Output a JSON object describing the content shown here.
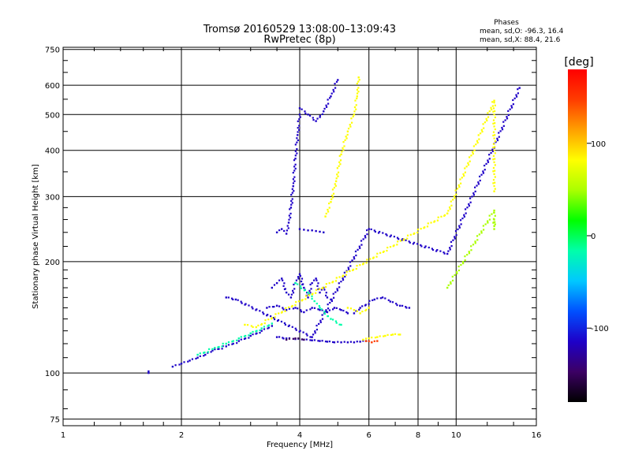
{
  "chart_data": {
    "type": "scatter",
    "title": "Tromsø 20160529 13:08:00–13:09:43",
    "subtitle": "RwPretec (8p)",
    "xlabel": "Frequency [MHz]",
    "ylabel": "Stationary phase Virtual Height [km]",
    "x_scale": "log",
    "y_scale": "log",
    "xlim": [
      1,
      16
    ],
    "ylim": [
      72,
      760
    ],
    "x_ticks": [
      1,
      2,
      4,
      6,
      8,
      10,
      16
    ],
    "y_ticks": [
      75,
      100,
      200,
      300,
      400,
      500,
      600,
      750
    ],
    "grid": true,
    "stats": {
      "heading": "Phases",
      "line_o": "mean, sd,O: -96.3, 16.4",
      "line_x": "mean, sd,X:  88.4, 21.6"
    },
    "colorbar": {
      "label": "[deg]",
      "range": [
        -180,
        180
      ],
      "ticks": [
        100,
        0,
        -100
      ],
      "colors": [
        "#000000",
        "#3c0064",
        "#1e00c8",
        "#0050ff",
        "#00c8ff",
        "#00ffaa",
        "#00ff00",
        "#aaff00",
        "#ffff00",
        "#ffa000",
        "#ff3c00",
        "#ff0000"
      ]
    },
    "series": [
      {
        "phase_deg": -100,
        "tracks": [
          {
            "x": [
              1.65,
              1.65
            ],
            "y": [
              100,
              101
            ]
          },
          {
            "x": [
              1.9,
              2.0,
              2.1,
              2.2,
              2.3,
              2.4,
              2.6,
              2.8,
              3.0,
              3.2,
              3.4
            ],
            "y": [
              104,
              106,
              108,
              110,
              112,
              115,
              118,
              122,
              126,
              130,
              134
            ]
          },
          {
            "x": [
              3.5,
              3.7,
              3.9,
              4.1,
              4.3,
              4.5,
              4.7,
              4.9,
              5.1,
              5.3,
              5.5,
              5.7,
              5.9
            ],
            "y": [
              125,
              124,
              123.5,
              123,
              122.5,
              122,
              121.5,
              121,
              121,
              121,
              121,
              121.5,
              122
            ]
          },
          {
            "x": [
              3.4,
              3.5,
              3.6,
              3.7,
              3.8,
              3.9,
              4.0,
              4.1,
              4.2,
              4.3,
              4.4,
              4.5,
              4.6,
              4.7,
              4.8
            ],
            "y": [
              170,
              175,
              180,
              165,
              160,
              175,
              185,
              170,
              160,
              175,
              180,
              165,
              170,
              160,
              158
            ]
          },
          {
            "x": [
              3.3,
              3.5,
              3.7,
              3.9,
              4.1,
              4.3,
              4.5,
              4.7,
              4.9,
              5.1,
              5.3
            ],
            "y": [
              150,
              152,
              148,
              150,
              146,
              150,
              148,
              146,
              150,
              148,
              145
            ]
          },
          {
            "x": [
              3.5,
              3.6,
              3.7,
              3.75,
              3.8,
              3.85,
              3.9,
              3.95,
              4.0
            ],
            "y": [
              240,
              245,
              238,
              255,
              280,
              320,
              380,
              440,
              500
            ]
          },
          {
            "x": [
              4.0,
              4.1,
              4.2,
              4.3,
              4.4,
              4.5,
              4.6
            ],
            "y": [
              245,
              244,
              243,
              243,
              242,
              241,
              240
            ]
          },
          {
            "x": [
              4.0,
              4.2,
              4.4,
              4.6,
              4.8,
              5.0
            ],
            "y": [
              520,
              500,
              480,
              510,
              560,
              620
            ]
          },
          {
            "x": [
              5.5,
              5.7,
              6.2,
              6.5,
              6.8,
              7.2,
              7.6
            ],
            "y": [
              145,
              150,
              158,
              160,
              156,
              152,
              150
            ]
          },
          {
            "x": [
              2.6,
              2.75,
              4.3,
              6.0,
              9.5,
              14.5
            ],
            "y": [
              160,
              158,
              125,
              245,
              210,
              590
            ]
          }
        ]
      },
      {
        "phase_deg": -10,
        "tracks": [
          {
            "x": [
              2.2,
              2.4,
              2.6,
              2.8,
              3.0,
              3.2,
              3.4
            ],
            "y": [
              112,
              116,
              120,
              124,
              128,
              132,
              136
            ]
          },
          {
            "x": [
              3.9,
              4.2,
              4.5,
              4.8,
              5.1
            ],
            "y": [
              175,
              165,
              150,
              140,
              135
            ]
          }
        ]
      },
      {
        "phase_deg": 95,
        "tracks": [
          {
            "x": [
              4.65,
              4.8,
              4.95,
              5.1,
              5.3,
              5.5,
              5.6,
              5.65
            ],
            "y": [
              265,
              290,
              330,
              390,
              450,
              500,
              560,
              630
            ]
          },
          {
            "x": [
              5.8,
              6.0,
              6.3,
              6.6,
              6.9,
              7.2
            ],
            "y": [
              123,
              124,
              125,
              126,
              127,
              127
            ]
          },
          {
            "x": [
              5.3,
              5.5,
              5.7,
              6.0
            ],
            "y": [
              150,
              148,
              145,
              150
            ]
          },
          {
            "x": [
              2.9,
              3.1,
              9.5,
              12.5,
              12.5
            ],
            "y": [
              135,
              133,
              270,
              545,
              310
            ]
          }
        ]
      },
      {
        "phase_deg": 35,
        "tracks": [
          {
            "x": [
              9.5,
              12.5,
              12.5,
              12.5
            ],
            "y": [
              170,
              275,
              245,
              260
            ]
          }
        ]
      },
      {
        "phase_deg": 160,
        "tracks": [
          {
            "x": [
              5.9,
              6.1,
              6.3
            ],
            "y": [
              122,
              121,
              122
            ]
          }
        ]
      },
      {
        "phase_deg": -150,
        "tracks": [
          {
            "x": [
              3.7,
              3.9,
              4.1
            ],
            "y": [
              123,
              124,
              123
            ]
          }
        ]
      }
    ]
  }
}
